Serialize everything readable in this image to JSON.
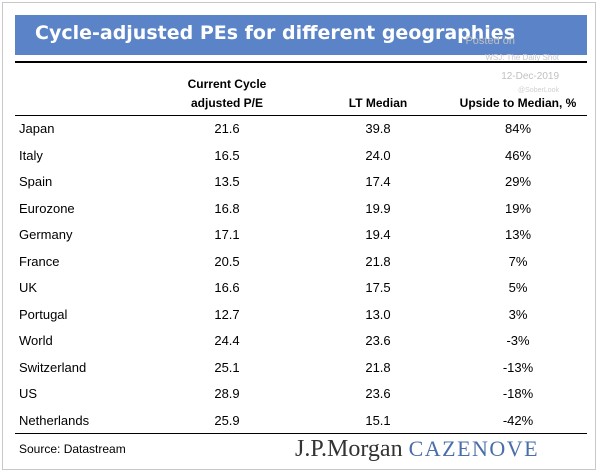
{
  "title": "Cycle-adjusted PEs for different geographies",
  "watermark": {
    "line1": "Posted on",
    "line2": "WSJ: The Daily Shot",
    "line3": "12-Dec-2019",
    "line4": "@SoberLook"
  },
  "headers": {
    "current_line1": "Current Cycle",
    "current_line2": "adjusted P/E",
    "median": "LT Median",
    "upside": "Upside to Median, %"
  },
  "rows": [
    {
      "country": "Japan",
      "current": "21.6",
      "median": "39.8",
      "upside": "84%"
    },
    {
      "country": "Italy",
      "current": "16.5",
      "median": "24.0",
      "upside": "46%"
    },
    {
      "country": "Spain",
      "current": "13.5",
      "median": "17.4",
      "upside": "29%"
    },
    {
      "country": "Eurozone",
      "current": "16.8",
      "median": "19.9",
      "upside": "19%"
    },
    {
      "country": "Germany",
      "current": "17.1",
      "median": "19.4",
      "upside": "13%"
    },
    {
      "country": "France",
      "current": "20.5",
      "median": "21.8",
      "upside": "7%"
    },
    {
      "country": "UK",
      "current": "16.6",
      "median": "17.5",
      "upside": "5%"
    },
    {
      "country": "Portugal",
      "current": "12.7",
      "median": "13.0",
      "upside": "3%"
    },
    {
      "country": "World",
      "current": "24.4",
      "median": "23.6",
      "upside": "-3%"
    },
    {
      "country": "Switzerland",
      "current": "25.1",
      "median": "21.8",
      "upside": "-13%"
    },
    {
      "country": "US",
      "current": "28.9",
      "median": "23.6",
      "upside": "-18%"
    },
    {
      "country": "Netherlands",
      "current": "25.9",
      "median": "15.1",
      "upside": "-42%"
    }
  ],
  "source": "Source: Datastream",
  "logo": {
    "primary": "J.P.Morgan",
    "secondary": "CAZENOVE"
  },
  "colors": {
    "title_bar": "#5b84c8",
    "logo_accent": "#4a6ea9"
  }
}
